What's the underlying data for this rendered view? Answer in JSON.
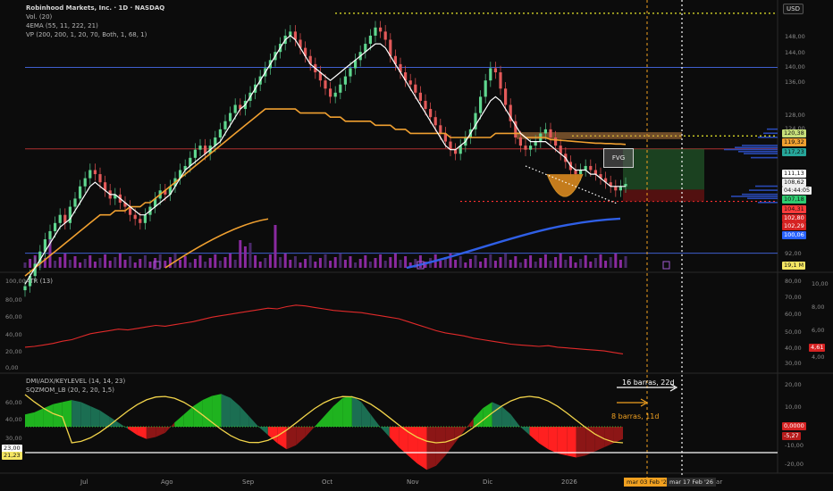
{
  "header": {
    "title": "Robinhood Markets, Inc. · 1D · NASDAQ",
    "indicators": [
      "Vol. (20)",
      "4EMA (55, 11, 222, 21)",
      "VP (200, 200, 1, 20, 70, Both, 1, 68, 1)"
    ]
  },
  "currency": "USD",
  "price_axis_ticks": [
    "148,00",
    "144,00",
    "140,00",
    "136,00",
    "128,00",
    "124,00",
    "92,00"
  ],
  "price_badges": [
    {
      "text": "120,38",
      "bg": "#c7e07a",
      "fg": "#111"
    },
    {
      "text": "119,32",
      "bg": "#f0a030",
      "fg": "#111"
    },
    {
      "text": "117,23",
      "bg": "#26a69a",
      "fg": "#111"
    },
    {
      "text": "111,13",
      "bg": "#ffffff",
      "fg": "#111"
    },
    {
      "text": "108,62",
      "bg": "#f0f0f0",
      "fg": "#111"
    },
    {
      "text": "04:44:05",
      "bg": "#f0f0f0",
      "fg": "#111"
    },
    {
      "text": "107,18",
      "bg": "#2ecc71",
      "fg": "#111"
    },
    {
      "text": "104,31",
      "bg": "#ff3b3b",
      "fg": "#111"
    },
    {
      "text": "102,80",
      "bg": "#d62222",
      "fg": "#fff"
    },
    {
      "text": "102,29",
      "bg": "#d62222",
      "fg": "#fff"
    },
    {
      "text": "100,06",
      "bg": "#2962ff",
      "fg": "#fff"
    },
    {
      "text": "19,1 M",
      "bg": "#f5e663",
      "fg": "#111"
    }
  ],
  "x_labels": [
    "Jul",
    "Ago",
    "Sep",
    "Oct",
    "Nov",
    "Dic",
    "2026",
    "Mar"
  ],
  "date_boxes": [
    "mar 03 Feb '26",
    "mar 17 Feb '26"
  ],
  "annotations": {
    "fvg": "FVG",
    "bars16": "16 barras, 22d",
    "bars8": "8 barras, 11d"
  },
  "atr": {
    "title": "ATR (13)",
    "left_ticks": [
      "100,00",
      "80,00",
      "60,00",
      "40,00",
      "20,00",
      "0,00"
    ],
    "mid_ticks": [
      "80,00",
      "70,00",
      "60,00",
      "50,00",
      "40,00",
      "30,00"
    ],
    "right_ticks": [
      "10,00",
      "8,00",
      "6,00",
      "4,00"
    ],
    "value": "4,61"
  },
  "dmi": {
    "title1": "DMI/ADX/KEYLEVEL (14, 14, 23)",
    "title2": "SQZMOM_LB (20, 2, 20, 1,5)",
    "left_ticks": [
      "60,00",
      "40,00",
      "30,00"
    ],
    "right_ticks": [
      "20,00",
      "10,00",
      "-10,00",
      "-20,00"
    ],
    "badges": [
      {
        "text": "23,00",
        "bg": "#ffffff",
        "fg": "#111"
      },
      {
        "text": "21,23",
        "bg": "#f5e663",
        "fg": "#111"
      },
      {
        "text": "0,0000",
        "bg": "#d62222",
        "fg": "#fff"
      },
      {
        "text": "-5,27",
        "bg": "#b71c1c",
        "fg": "#fff"
      }
    ]
  },
  "chart_data": {
    "type": "candlestick",
    "ylim": [
      88,
      152
    ],
    "close": [
      83.5,
      86,
      89,
      92,
      95,
      97,
      99,
      101,
      99,
      103,
      105,
      108,
      110,
      112,
      111,
      109,
      107,
      105,
      106,
      104,
      103,
      101,
      100,
      99,
      101,
      103,
      105,
      107,
      106,
      108,
      110,
      112,
      113,
      115,
      117,
      118,
      116,
      118,
      120,
      122,
      124,
      126,
      128,
      127,
      129,
      131,
      133,
      135,
      137,
      139,
      141,
      143,
      145,
      146,
      144,
      142,
      140,
      138,
      136,
      134,
      132,
      130,
      131,
      133,
      135,
      137,
      139,
      141,
      143,
      145,
      147,
      146,
      144,
      140,
      138,
      136,
      134,
      133,
      131,
      129,
      127,
      125,
      123,
      121,
      119,
      117,
      116,
      118,
      120,
      122,
      126,
      130,
      134,
      137,
      136,
      132,
      128,
      124,
      120,
      118,
      117,
      118,
      119,
      121,
      122,
      120,
      118,
      116,
      114,
      112,
      111,
      112,
      113,
      112,
      111,
      110,
      109,
      108,
      107,
      108,
      108.6
    ],
    "ema_white": [
      84,
      86,
      88,
      90,
      92,
      94,
      96,
      98,
      99,
      100,
      102,
      104,
      106,
      108,
      109,
      108,
      107,
      106,
      106,
      105,
      104,
      103,
      102,
      101,
      101,
      102,
      103,
      104,
      105,
      106,
      108,
      110,
      112,
      113,
      114,
      115,
      116,
      117,
      118,
      119,
      121,
      123,
      125,
      127,
      128,
      130,
      132,
      134,
      136,
      138,
      140,
      142,
      144,
      145,
      144,
      142,
      140,
      138,
      137,
      136,
      135,
      134,
      135,
      136,
      137,
      138,
      139,
      140,
      141,
      142,
      143,
      143,
      142,
      140,
      138,
      136,
      134,
      132,
      130,
      128,
      126,
      124,
      122,
      120,
      118,
      117,
      117,
      118,
      119,
      121,
      123,
      125,
      127,
      129,
      130,
      129,
      127,
      125,
      123,
      121,
      120,
      119,
      119,
      119,
      119,
      118,
      117,
      116,
      115,
      113,
      112,
      112,
      112,
      111,
      111,
      110,
      109,
      108,
      108,
      108,
      108
    ],
    "ema_orange": [
      86,
      87,
      88,
      89,
      90,
      91,
      92,
      93,
      94,
      95,
      96,
      97,
      98,
      99,
      100,
      101,
      101,
      101,
      102,
      102,
      102,
      103,
      103,
      103,
      104,
      104,
      105,
      106,
      107,
      108,
      109,
      110,
      111,
      112,
      113,
      114,
      115,
      116,
      117,
      118,
      119,
      120,
      121,
      122,
      123,
      124,
      125,
      126,
      127,
      127,
      127,
      127,
      127,
      127,
      127,
      126,
      126,
      126,
      126,
      126,
      126,
      125,
      125,
      125,
      124,
      124,
      124,
      124,
      124,
      124,
      123,
      123,
      123,
      123,
      122,
      122,
      122,
      121,
      121,
      121,
      121,
      121,
      121,
      121,
      121,
      120,
      120,
      120,
      120,
      120,
      120,
      120,
      120,
      120,
      121,
      121,
      121,
      121,
      121,
      121,
      120,
      120,
      120,
      120,
      120,
      119.5,
      119.4,
      119.3,
      119.2,
      119.1,
      119.0,
      118.9,
      118.8,
      118.7,
      118.6,
      118.6,
      118.5,
      118.5,
      118.4,
      118.4,
      118.3
    ],
    "ema_blue_start_price": 88,
    "ema_blue_end_price": 100.06,
    "levels": {
      "upper_dotted": 150.5,
      "resistance_blue": 137.2,
      "red_line": 117.2,
      "yellow_dotted": 120.38,
      "red_dotted": 104.31,
      "blue_low": 91.6
    },
    "atr_values": [
      18,
      19,
      21,
      23,
      26,
      28,
      32,
      36,
      38,
      40,
      42,
      41,
      43,
      45,
      47,
      46,
      48,
      50,
      52,
      55,
      58,
      60,
      62,
      64,
      66,
      68,
      70,
      69,
      72,
      74,
      73,
      71,
      69,
      67,
      66,
      65,
      64,
      62,
      60,
      58,
      56,
      52,
      48,
      44,
      40,
      37,
      35,
      33,
      30,
      28,
      26,
      24,
      22,
      21,
      20,
      19,
      20,
      18,
      17,
      16,
      15,
      14,
      13,
      11,
      9
    ],
    "sqz_values": [
      6,
      7,
      9,
      11,
      12,
      13,
      12,
      10,
      8,
      5,
      2,
      -1,
      -4,
      -6,
      -5,
      -3,
      2,
      6,
      10,
      13,
      15,
      16,
      14,
      10,
      5,
      0,
      -4,
      -8,
      -11,
      -9,
      -5,
      0,
      5,
      10,
      14,
      15,
      12,
      6,
      0,
      -5,
      -10,
      -14,
      -18,
      -21,
      -19,
      -14,
      -8,
      -2,
      4,
      9,
      12,
      10,
      6,
      0,
      -4,
      -8,
      -11,
      -13,
      -14,
      -15,
      -14,
      -12,
      -10,
      -8,
      -6
    ]
  }
}
